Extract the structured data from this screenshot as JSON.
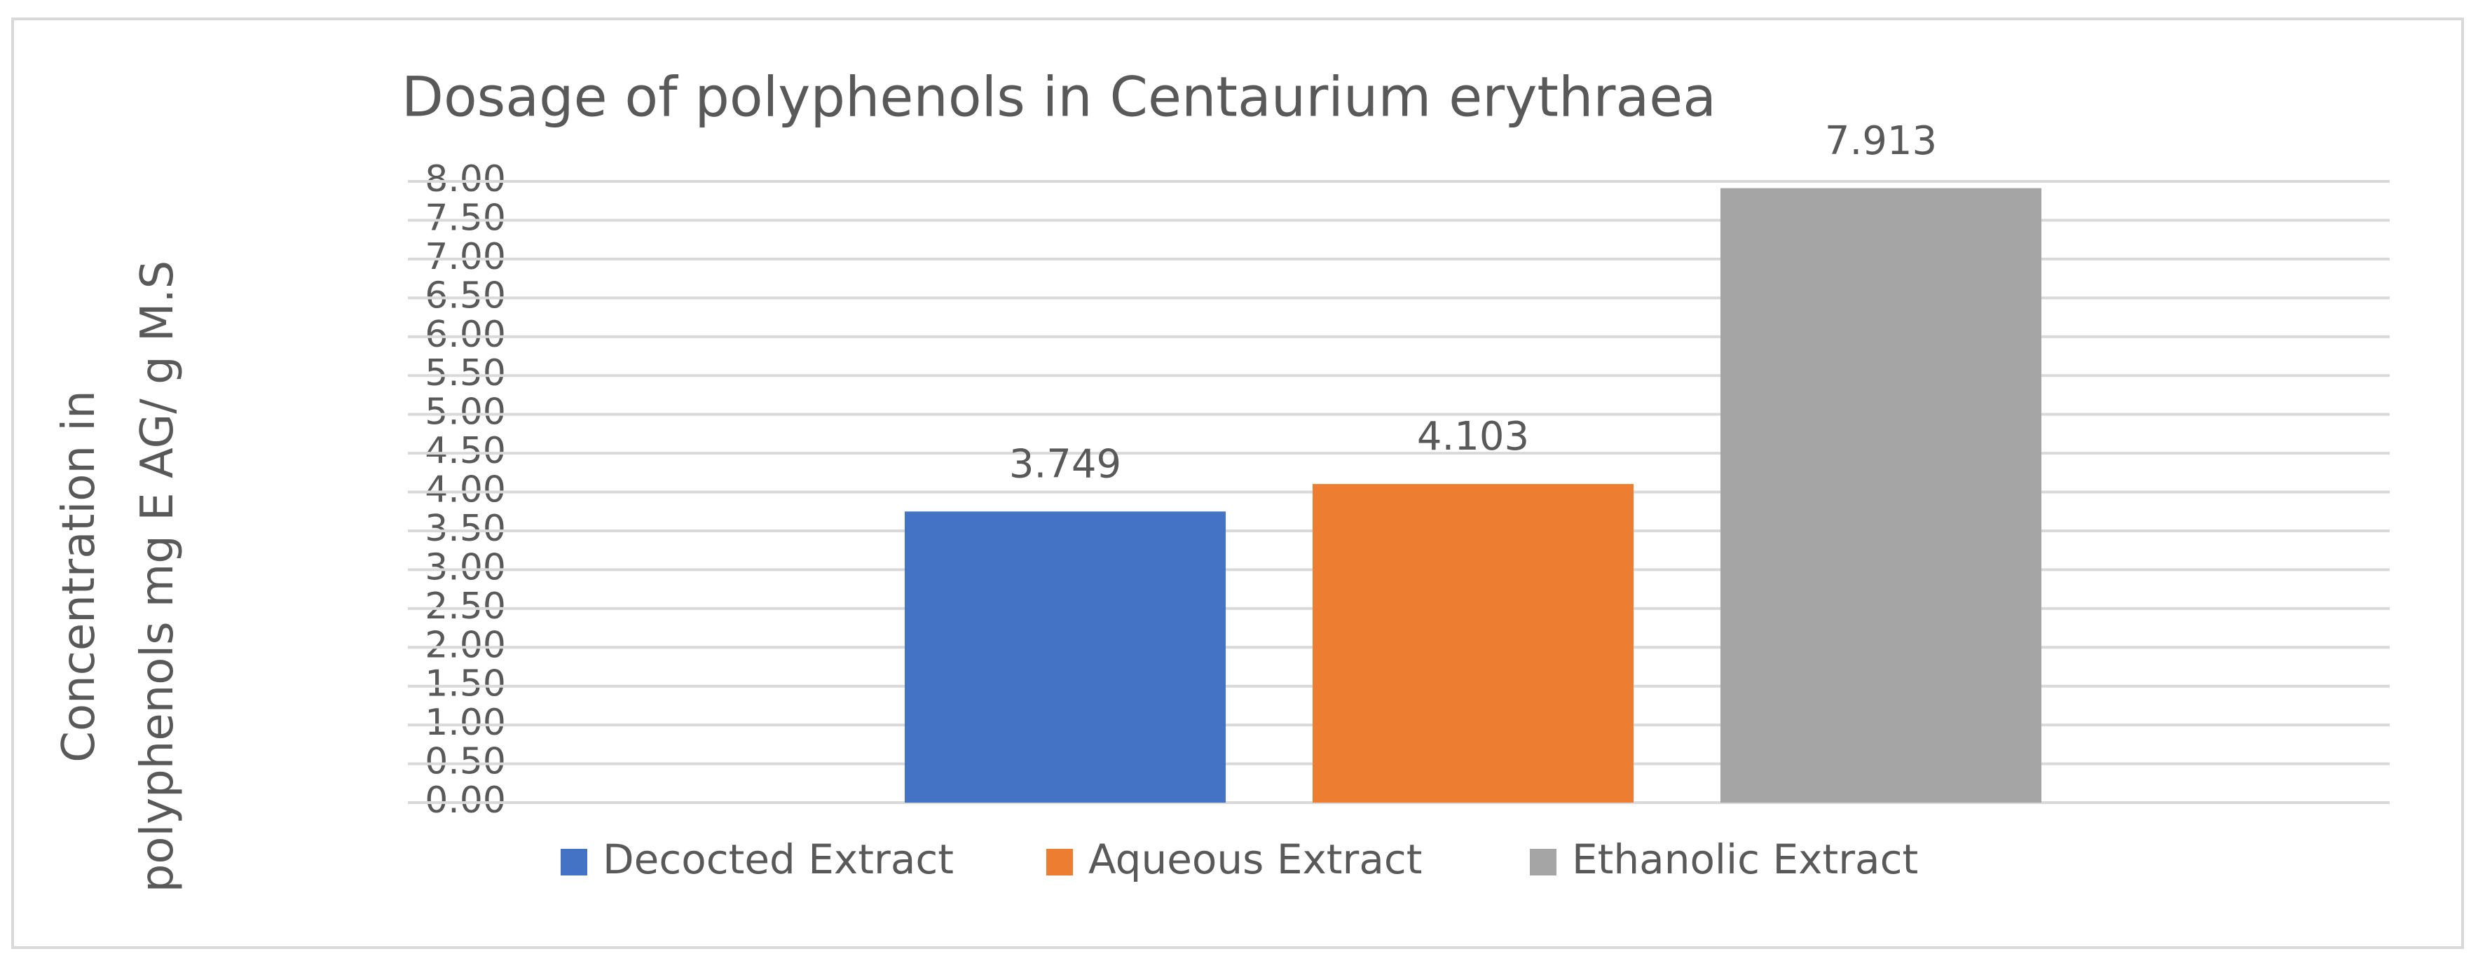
{
  "chart_data": {
    "type": "bar",
    "title": "Dosage of polyphenols in Centaurium erythraea",
    "y_label": "Concentration in polyphenols mg E AG/ g M.S",
    "categories": [
      null
    ],
    "series": [
      {
        "name": "Decocted Extract",
        "color": "#4472c4",
        "values": [
          3.749
        ]
      },
      {
        "name": "Aqueous Extract",
        "color": "#ed7d31",
        "values": [
          4.103
        ]
      },
      {
        "name": "Ethanolic Extract",
        "color": "#a5a5a5",
        "values": [
          7.913
        ]
      }
    ],
    "ylim": [
      0,
      8
    ],
    "yticks": [
      {
        "value": 0,
        "label": "0.00"
      },
      {
        "value": 0.5,
        "label": "0.50"
      },
      {
        "value": 1,
        "label": "1.00"
      },
      {
        "value": 1.5,
        "label": "1.50"
      },
      {
        "value": 2,
        "label": "2.00"
      },
      {
        "value": 2.5,
        "label": "2.50"
      },
      {
        "value": 3,
        "label": "3.00"
      },
      {
        "value": 3.5,
        "label": "3.50"
      },
      {
        "value": 4,
        "label": "4.00"
      },
      {
        "value": 4.5,
        "label": "4.50"
      },
      {
        "value": 5,
        "label": "5.00"
      },
      {
        "value": 5.5,
        "label": "5.50"
      },
      {
        "value": 6,
        "label": "6.00"
      },
      {
        "value": 6.5,
        "label": "6.50"
      },
      {
        "value": 7,
        "label": "7.00"
      },
      {
        "value": 7.5,
        "label": "7.50"
      },
      {
        "value": 8,
        "label": "8.00"
      }
    ],
    "grid": true,
    "legend": "bottom"
  }
}
